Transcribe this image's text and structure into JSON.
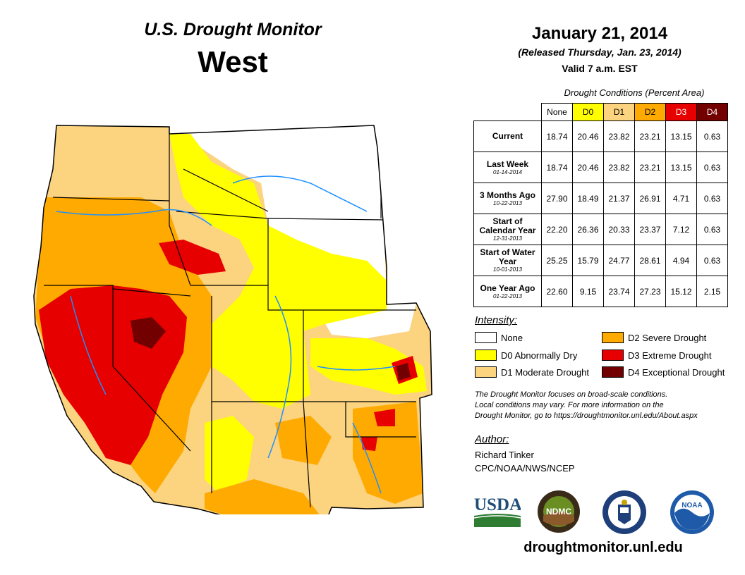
{
  "header": {
    "title": "U.S. Drought Monitor",
    "region": "West",
    "date": "January 21, 2014",
    "released": "(Released Thursday, Jan. 23, 2014)",
    "valid": "Valid 7 a.m. EST"
  },
  "table": {
    "caption": "Drought Conditions (Percent Area)",
    "columns": [
      "None",
      "D0",
      "D1",
      "D2",
      "D3",
      "D4"
    ],
    "rows": [
      {
        "label": "Current",
        "sub": "",
        "values": [
          "18.74",
          "20.46",
          "23.82",
          "23.21",
          "13.15",
          "0.63"
        ]
      },
      {
        "label": "Last Week",
        "sub": "01-14-2014",
        "values": [
          "18.74",
          "20.46",
          "23.82",
          "23.21",
          "13.15",
          "0.63"
        ]
      },
      {
        "label": "3 Months Ago",
        "sub": "10-22-2013",
        "values": [
          "27.90",
          "18.49",
          "21.37",
          "26.91",
          "4.71",
          "0.63"
        ]
      },
      {
        "label": "Start of Calendar Year",
        "sub": "12-31-2013",
        "values": [
          "22.20",
          "26.36",
          "20.33",
          "23.37",
          "7.12",
          "0.63"
        ]
      },
      {
        "label": "Start of Water Year",
        "sub": "10-01-2013",
        "values": [
          "25.25",
          "15.79",
          "24.77",
          "28.61",
          "4.94",
          "0.63"
        ]
      },
      {
        "label": "One Year Ago",
        "sub": "01-22-2013",
        "values": [
          "22.60",
          "9.15",
          "23.74",
          "27.23",
          "15.12",
          "2.15"
        ]
      }
    ]
  },
  "legend": {
    "title": "Intensity:",
    "items": [
      {
        "label": "None",
        "color": "#ffffff"
      },
      {
        "label": "D0 Abnormally Dry",
        "color": "#ffff00"
      },
      {
        "label": "D1 Moderate Drought",
        "color": "#fcd37f"
      },
      {
        "label": "D2 Severe Drought",
        "color": "#ffaa00"
      },
      {
        "label": "D3 Extreme Drought",
        "color": "#e60000"
      },
      {
        "label": "D4 Exceptional Drought",
        "color": "#730000"
      }
    ]
  },
  "note": {
    "line1": "The Drought Monitor focuses on broad-scale conditions.",
    "line2": "Local conditions may vary. For more information on the",
    "line3": "Drought Monitor, go to https://droughtmonitor.unl.edu/About.aspx"
  },
  "author": {
    "title": "Author:",
    "name": "Richard Tinker",
    "org": "CPC/NOAA/NWS/NCEP"
  },
  "logos": {
    "usda": "USDA",
    "ndmc": "NDMC",
    "noaa": "NOAA"
  },
  "url": "droughtmonitor.unl.edu",
  "colors": {
    "none": "#ffffff",
    "d0": "#ffff00",
    "d1": "#fcd37f",
    "d2": "#ffaa00",
    "d3": "#e60000",
    "d4": "#730000",
    "water": "#1e90ff"
  }
}
